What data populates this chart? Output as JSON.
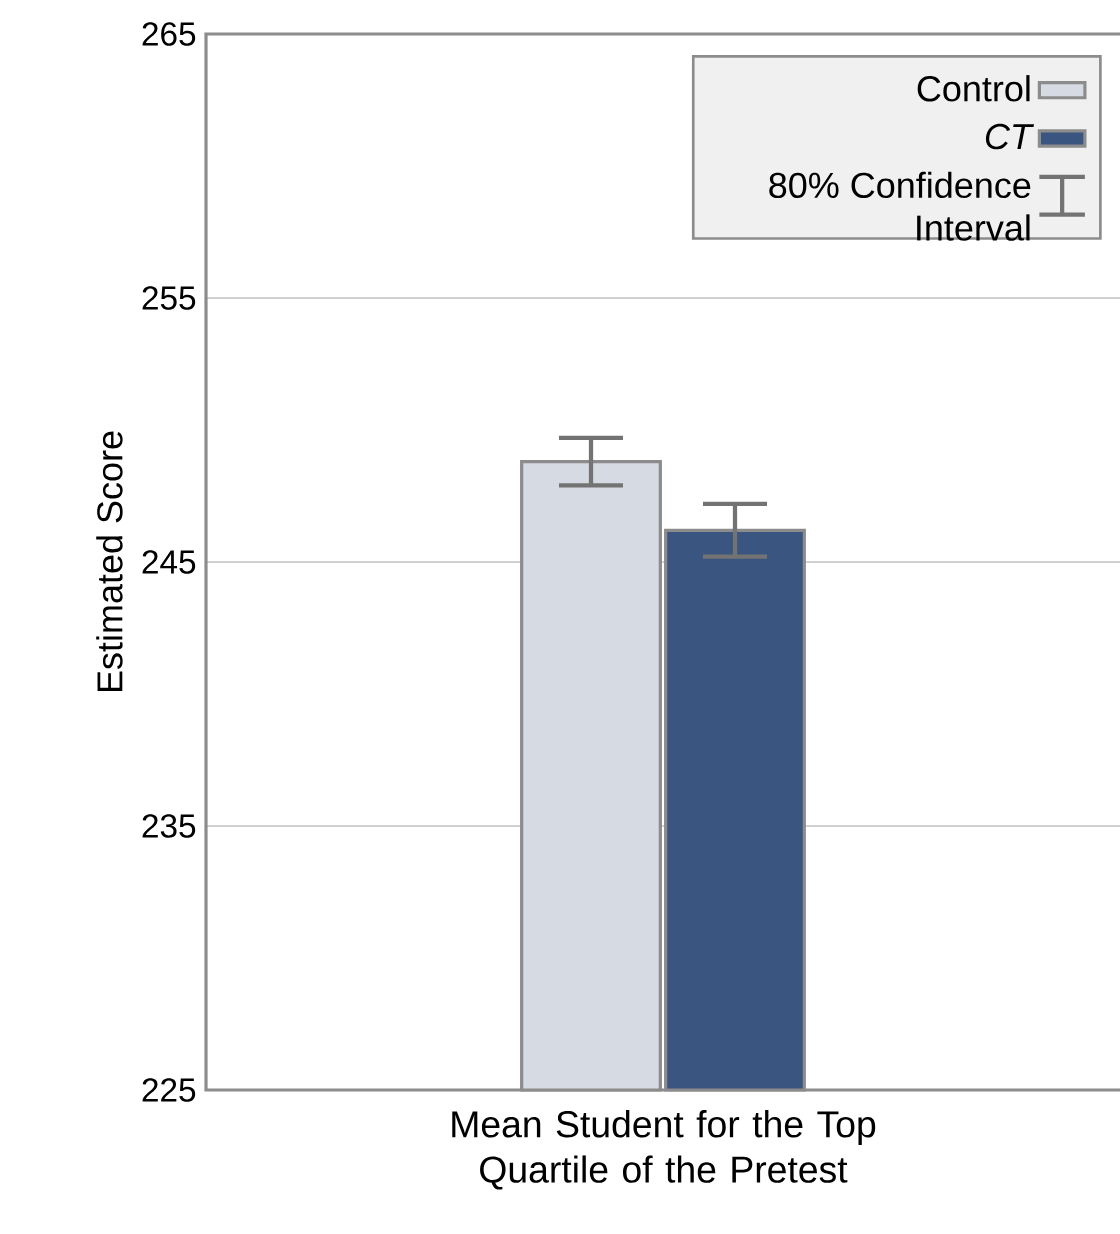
{
  "chart_data": {
    "type": "bar",
    "ylabel": "Estimated Score",
    "categories": [
      "Mean Student for the Top Quartile of the Pretest"
    ],
    "series": [
      {
        "name": "Control",
        "color": "#d6dae3",
        "values": [
          248.8
        ],
        "errors": [
          0.9
        ]
      },
      {
        "name": "CT",
        "color": "#3a5580",
        "values": [
          246.2
        ],
        "errors": [
          1.0
        ]
      }
    ],
    "ylim": [
      225,
      265
    ],
    "yticks": [
      225,
      235,
      245,
      255,
      265
    ],
    "grid": "y",
    "legend": "top right",
    "annotations": [
      "80% Confidence Interval"
    ]
  }
}
